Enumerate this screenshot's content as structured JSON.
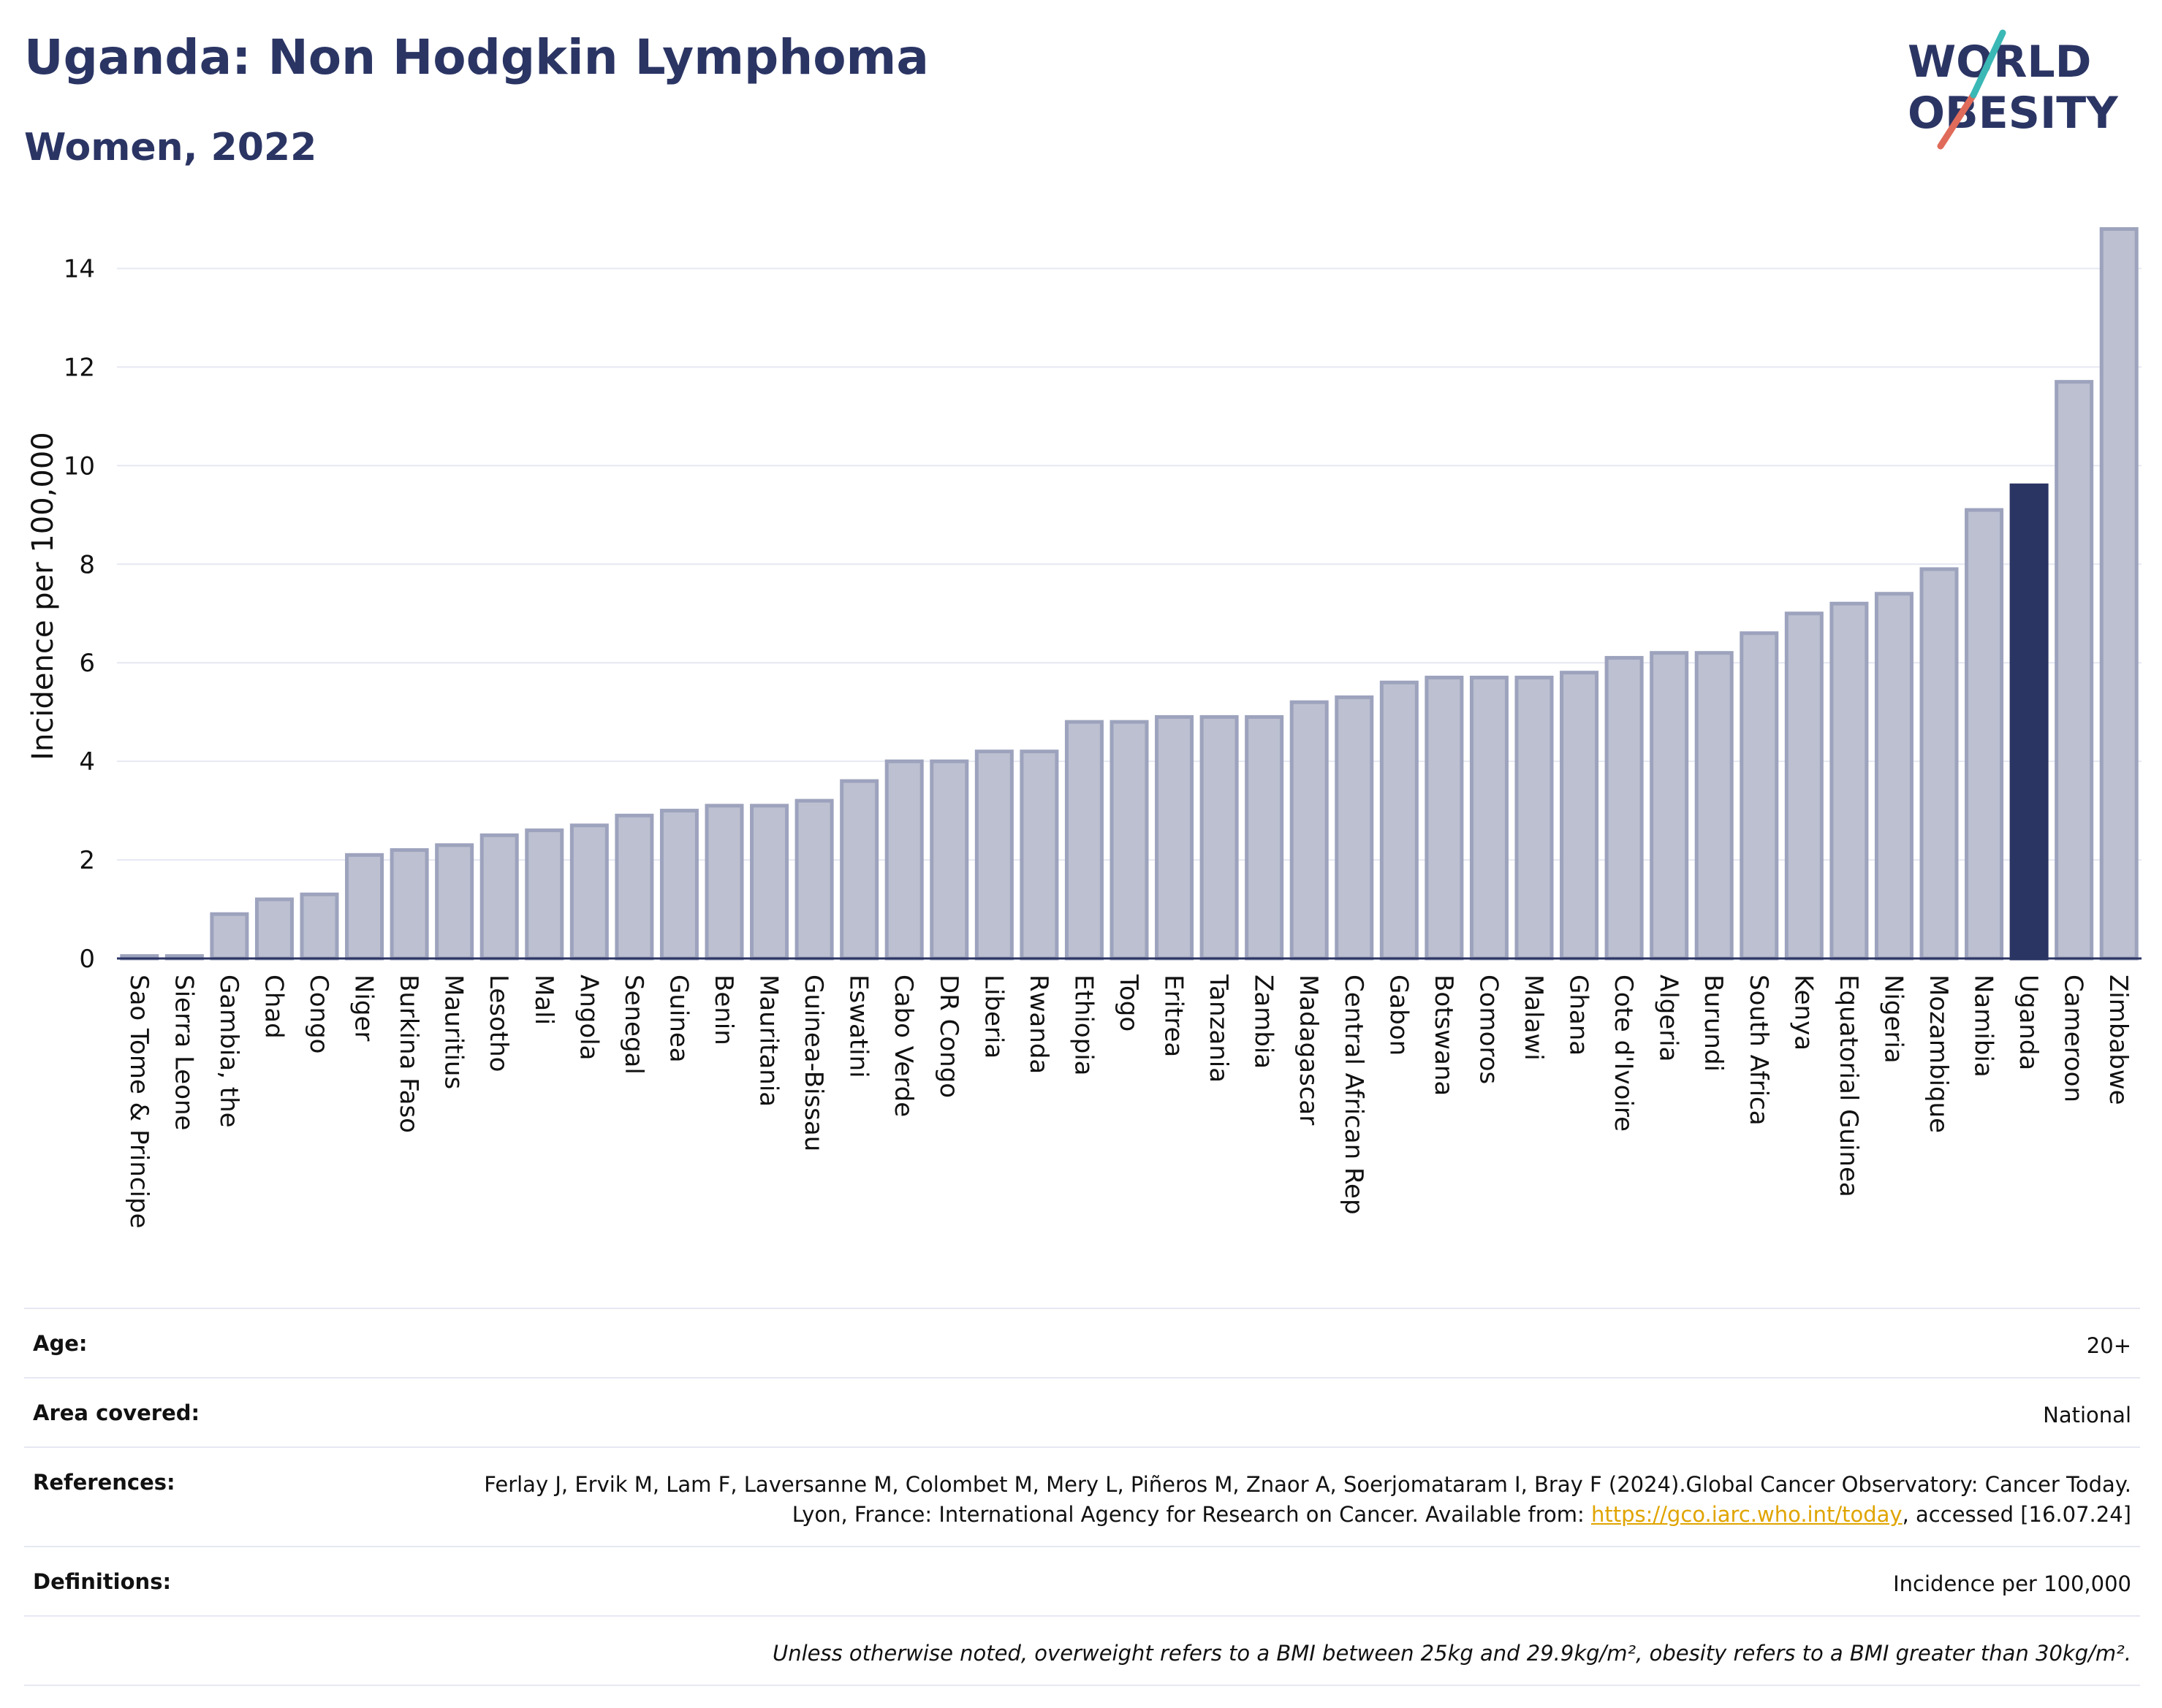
{
  "header": {
    "title": "Uganda: Non Hodgkin Lymphoma",
    "subtitle": "Women, 2022"
  },
  "logo": {
    "line1": "WORLD",
    "line2": "OBESITY"
  },
  "colors": {
    "bar": "#bcc0d0",
    "bar_stroke": "#9da3bd",
    "highlight": "#2b3564",
    "grid": "#e6e8f2",
    "title": "#2b3564"
  },
  "chart_data": {
    "type": "bar",
    "ylabel": "Incidence per 100,000",
    "xlabel": "",
    "ylim": [
      0,
      15
    ],
    "yticks": [
      0,
      2,
      4,
      6,
      8,
      10,
      12,
      14
    ],
    "grid": true,
    "highlight": "Uganda",
    "categories": [
      "Sao Tome & Principe",
      "Sierra Leone",
      "Gambia, the",
      "Chad",
      "Congo",
      "Niger",
      "Burkina Faso",
      "Mauritius",
      "Lesotho",
      "Mali",
      "Angola",
      "Senegal",
      "Guinea",
      "Benin",
      "Mauritania",
      "Guinea-Bissau",
      "Eswatini",
      "Cabo Verde",
      "DR Congo",
      "Liberia",
      "Rwanda",
      "Ethiopia",
      "Togo",
      "Eritrea",
      "Tanzania",
      "Zambia",
      "Madagascar",
      "Central African Rep",
      "Gabon",
      "Botswana",
      "Comoros",
      "Malawi",
      "Ghana",
      "Cote d'Ivoire",
      "Algeria",
      "Burundi",
      "South Africa",
      "Kenya",
      "Equatorial Guinea",
      "Nigeria",
      "Mozambique",
      "Namibia",
      "Uganda",
      "Cameroon",
      "Zimbabwe"
    ],
    "values": [
      0.05,
      0.05,
      0.9,
      1.2,
      1.3,
      2.1,
      2.2,
      2.3,
      2.5,
      2.6,
      2.7,
      2.9,
      3.0,
      3.1,
      3.1,
      3.2,
      3.6,
      4.0,
      4.0,
      4.2,
      4.2,
      4.8,
      4.8,
      4.9,
      4.9,
      4.9,
      5.2,
      5.3,
      5.6,
      5.7,
      5.7,
      5.7,
      5.8,
      6.1,
      6.2,
      6.2,
      6.6,
      7.0,
      7.2,
      7.4,
      7.9,
      9.1,
      9.6,
      11.7,
      14.8
    ]
  },
  "meta": {
    "age_label": "Age:",
    "age_value": "20+",
    "area_label": "Area covered:",
    "area_value": "National",
    "references_label": "References:",
    "references_text": "Ferlay J, Ervik M, Lam F, Laversanne M, Colombet M, Mery L, Piñeros M, Znaor A, Soerjomataram I, Bray F (2024).Global Cancer Observatory: Cancer Today. Lyon, France: International Agency for Research on Cancer. Available from: ",
    "references_link": "https://gco.iarc.who.int/today",
    "references_tail": ", accessed [16.07.24]",
    "definitions_label": "Definitions:",
    "definitions_value": "Incidence per 100,000",
    "note": "Unless otherwise noted, overweight refers to a BMI between 25kg and 29.9kg/m², obesity refers to a BMI greater than 30kg/m²."
  }
}
